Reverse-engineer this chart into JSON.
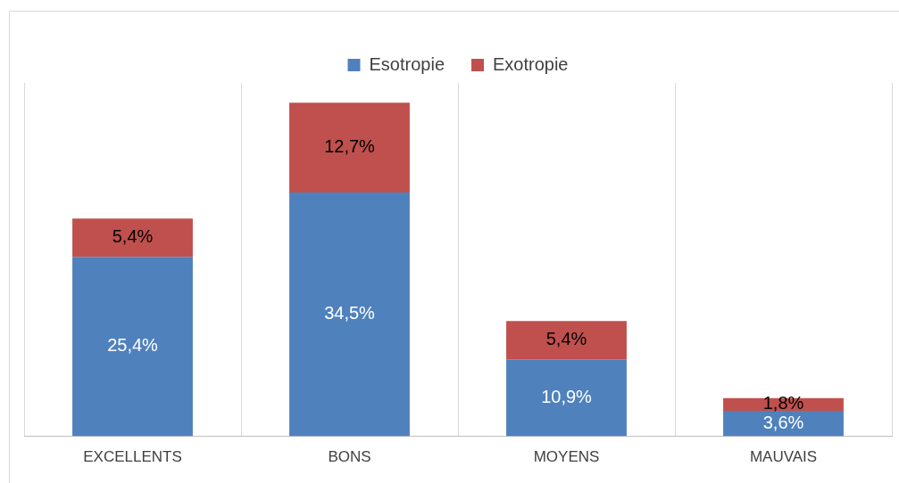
{
  "chart_data": {
    "type": "bar",
    "stacked": true,
    "categories": [
      "EXCELLENTS",
      "BONS",
      "MOYENS",
      "MAUVAIS"
    ],
    "series": [
      {
        "name": "Esotropie",
        "color": "#4f81bd",
        "values": [
          25.4,
          34.5,
          10.9,
          3.6
        ],
        "value_labels": [
          "25,4%",
          "34,5%",
          "10,9%",
          "3,6%"
        ]
      },
      {
        "name": "Exotropie",
        "color": "#c0504d",
        "values": [
          5.4,
          12.7,
          5.4,
          1.8
        ],
        "value_labels": [
          "5,4%",
          "12,7%",
          "5,4%",
          "1,8%"
        ]
      }
    ],
    "grid": "x",
    "legend": "top"
  }
}
